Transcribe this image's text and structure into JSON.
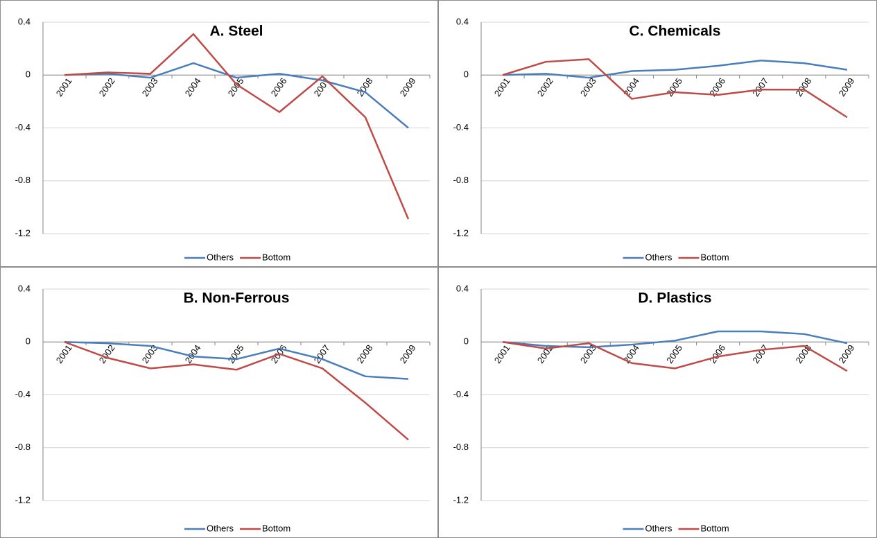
{
  "chart_data": [
    {
      "type": "line",
      "title": "A. Steel",
      "categories": [
        "2001",
        "2002",
        "2003",
        "2004",
        "2005",
        "2006",
        "2007",
        "2008",
        "2009"
      ],
      "series": [
        {
          "name": "Others",
          "color": "#4a7ebb",
          "values": [
            0,
            0.01,
            -0.02,
            0.09,
            -0.02,
            0.01,
            -0.04,
            -0.13,
            -0.4
          ]
        },
        {
          "name": "Bottom",
          "color": "#be4b48",
          "values": [
            0,
            0.02,
            0.01,
            0.31,
            -0.07,
            -0.28,
            -0.01,
            -0.32,
            -1.09
          ]
        }
      ],
      "ylim": [
        -1.2,
        0.4
      ],
      "yticks": [
        0.4,
        0,
        -0.4,
        -0.8,
        -1.2
      ],
      "grid": true,
      "legend": "bottom"
    },
    {
      "type": "line",
      "title": "C. Chemicals",
      "categories": [
        "2001",
        "2002",
        "2003",
        "2004",
        "2005",
        "2006",
        "2007",
        "2008",
        "2009"
      ],
      "series": [
        {
          "name": "Others",
          "color": "#4a7ebb",
          "values": [
            0,
            0.01,
            -0.02,
            0.03,
            0.04,
            0.07,
            0.11,
            0.09,
            0.04
          ]
        },
        {
          "name": "Bottom",
          "color": "#be4b48",
          "values": [
            0,
            0.1,
            0.12,
            -0.18,
            -0.13,
            -0.15,
            -0.11,
            -0.11,
            -0.32
          ]
        }
      ],
      "ylim": [
        -1.2,
        0.4
      ],
      "yticks": [
        0.4,
        0,
        -0.4,
        -0.8,
        -1.2
      ],
      "grid": true,
      "legend": "bottom"
    },
    {
      "type": "line",
      "title": "B. Non-Ferrous",
      "categories": [
        "2001",
        "2002",
        "2003",
        "2004",
        "2005",
        "2006",
        "2007",
        "2008",
        "2009"
      ],
      "series": [
        {
          "name": "Others",
          "color": "#4a7ebb",
          "values": [
            0,
            -0.01,
            -0.03,
            -0.11,
            -0.13,
            -0.05,
            -0.13,
            -0.26,
            -0.28
          ]
        },
        {
          "name": "Bottom",
          "color": "#be4b48",
          "values": [
            0,
            -0.12,
            -0.2,
            -0.17,
            -0.21,
            -0.09,
            -0.2,
            -0.46,
            -0.74
          ]
        }
      ],
      "ylim": [
        -1.2,
        0.4
      ],
      "yticks": [
        0.4,
        0,
        -0.4,
        -0.8,
        -1.2
      ],
      "grid": true,
      "legend": "bottom"
    },
    {
      "type": "line",
      "title": "D. Plastics",
      "categories": [
        "2001",
        "2002",
        "2003",
        "2004",
        "2005",
        "2006",
        "2007",
        "2008",
        "2009"
      ],
      "series": [
        {
          "name": "Others",
          "color": "#4a7ebb",
          "values": [
            0,
            -0.03,
            -0.04,
            -0.02,
            0.01,
            0.08,
            0.08,
            0.06,
            -0.01
          ]
        },
        {
          "name": "Bottom",
          "color": "#be4b48",
          "values": [
            0,
            -0.05,
            -0.01,
            -0.16,
            -0.2,
            -0.11,
            -0.06,
            -0.03,
            -0.22
          ]
        }
      ],
      "ylim": [
        -1.2,
        0.4
      ],
      "yticks": [
        0.4,
        0,
        -0.4,
        -0.8,
        -1.2
      ],
      "grid": true,
      "legend": "bottom"
    }
  ]
}
